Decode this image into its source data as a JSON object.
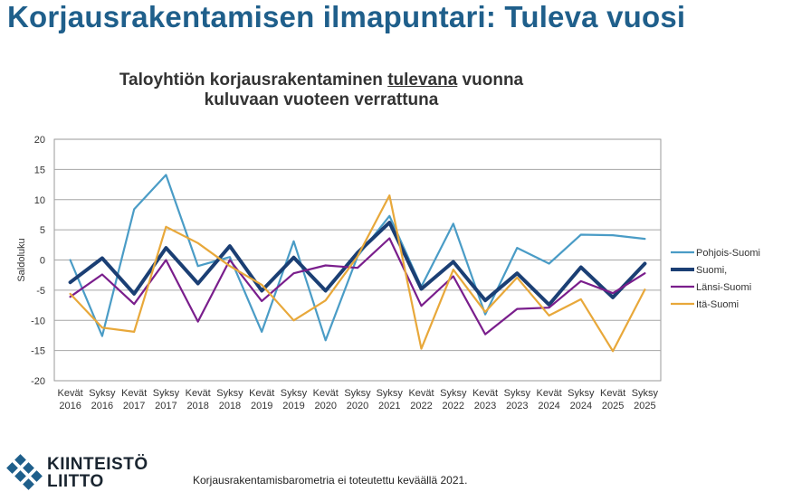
{
  "page": {
    "title": "Korjausrakentamisen ilmapuntari: Tuleva vuosi",
    "footnote": "Korjausrakentamisbarometria ei toteutettu keväällä 2021."
  },
  "logo": {
    "line1": "KIINTEISTÖ",
    "line2": "LIITTO",
    "color": "#1f5f8b"
  },
  "chart_title": {
    "part1": "Taloyhtiön korjausrakentaminen ",
    "underlined": "tulevana",
    "part2": " vuonna",
    "line2": "kuluvaan vuoteen verrattuna"
  },
  "chart_data": {
    "type": "line",
    "title": "Taloyhtiön korjausrakentaminen tulevana vuonna kuluvaan vuoteen verrattuna",
    "ylabel": "Saldoluku",
    "xlabel": "",
    "ylim": [
      -20,
      20
    ],
    "yticks": [
      20,
      15,
      10,
      5,
      0,
      -5,
      -10,
      -15,
      -20
    ],
    "grid": "horizontal",
    "legend_position": "right",
    "categories": [
      [
        "Kevät",
        "2016"
      ],
      [
        "Syksy",
        "2016"
      ],
      [
        "Kevät",
        "2017"
      ],
      [
        "Syksy",
        "2017"
      ],
      [
        "Kevät",
        "2018"
      ],
      [
        "Syksy",
        "2018"
      ],
      [
        "Kevät",
        "2019"
      ],
      [
        "Syksy",
        "2019"
      ],
      [
        "Kevät",
        "2020"
      ],
      [
        "Syksy",
        "2020"
      ],
      [
        "Syksy",
        "2021"
      ],
      [
        "Kevät",
        "2022"
      ],
      [
        "Syksy",
        "2022"
      ],
      [
        "Kevät",
        "2023"
      ],
      [
        "Syksy",
        "2023"
      ],
      [
        "Kevät",
        "2024"
      ],
      [
        "Syksy",
        "2024"
      ],
      [
        "Kevät",
        "2025"
      ],
      [
        "Syksy",
        "2025"
      ]
    ],
    "series": [
      {
        "name": "Pohjois-Suomi",
        "color": "#4a9cc6",
        "width": 2.2,
        "values": [
          0,
          -12.6,
          8.4,
          14.1,
          -1,
          0.5,
          -11.9,
          3.1,
          -13.3,
          0.6,
          7.3,
          -4.4,
          6,
          -9,
          2,
          -0.6,
          4.2,
          4.1,
          3.5
        ]
      },
      {
        "name": "Suomi,",
        "color": "#1b3f74",
        "width": 4,
        "values": [
          -3.7,
          0.3,
          -5.6,
          2,
          -3.9,
          2.3,
          -5.1,
          0.4,
          -5.1,
          1.2,
          6.2,
          -4.8,
          -0.3,
          -6.7,
          -2.2,
          -7.4,
          -1.2,
          -6.2,
          -0.6
        ]
      },
      {
        "name": "Länsi-Suomi",
        "color": "#7a1e8c",
        "width": 2.2,
        "values": [
          -6.1,
          -2.4,
          -7.3,
          0,
          -10.2,
          0,
          -6.8,
          -2.2,
          -0.9,
          -1.3,
          3.6,
          -7.6,
          -2.7,
          -12.3,
          -8.1,
          -7.9,
          -3.5,
          -5.5,
          -2.2
        ]
      },
      {
        "name": "Itä-Suomi",
        "color": "#e8a83a",
        "width": 2.2,
        "values": [
          -5.6,
          -11.2,
          -11.9,
          5.5,
          2.8,
          -1,
          -4.1,
          -10,
          -6.7,
          0.6,
          10.7,
          -14.7,
          -1.6,
          -8.6,
          -2.9,
          -9.2,
          -6.5,
          -15.1,
          -4.9
        ]
      }
    ]
  }
}
